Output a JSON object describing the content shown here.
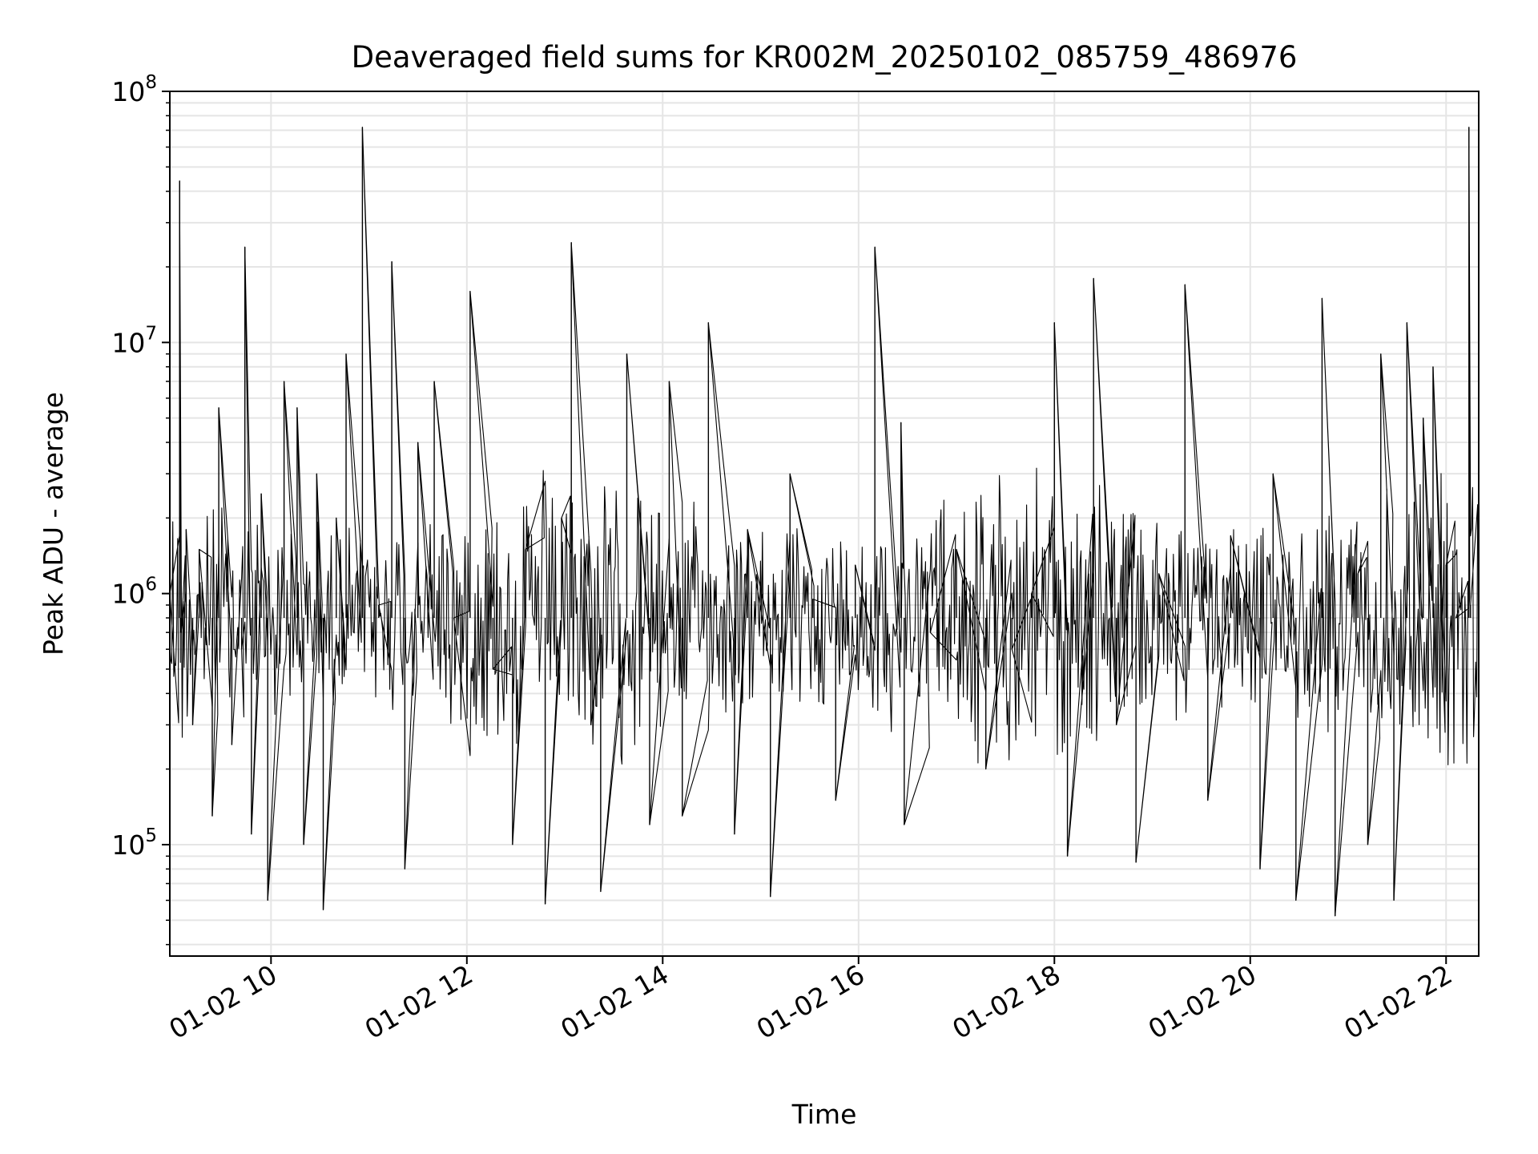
{
  "chart_data": {
    "type": "line",
    "title": "Deaveraged field sums for KR002M_20250102_085759_486976",
    "xlabel": "Time",
    "ylabel": "Peak ADU - average",
    "y_scale": "log",
    "ylim": [
      36000,
      100000000
    ],
    "xlim": [
      "2025-01-02 08:58",
      "2025-01-02 22:20"
    ],
    "grid": true,
    "legend": "none",
    "line_color": "#000000",
    "grid_color": "#e5e5e5",
    "x_ticks": [
      {
        "at": "2025-01-02 10:00",
        "label": "01-02 10"
      },
      {
        "at": "2025-01-02 12:00",
        "label": "01-02 12"
      },
      {
        "at": "2025-01-02 14:00",
        "label": "01-02 14"
      },
      {
        "at": "2025-01-02 16:00",
        "label": "01-02 16"
      },
      {
        "at": "2025-01-02 18:00",
        "label": "01-02 18"
      },
      {
        "at": "2025-01-02 20:00",
        "label": "01-02 20"
      },
      {
        "at": "2025-01-02 22:00",
        "label": "01-02 22"
      }
    ],
    "y_ticks": [
      {
        "value": 100000,
        "base": "10",
        "exp": "5"
      },
      {
        "value": 1000000,
        "base": "10",
        "exp": "6"
      },
      {
        "value": 10000000,
        "base": "10",
        "exp": "7"
      },
      {
        "value": 100000000,
        "base": "10",
        "exp": "8"
      }
    ],
    "series": [
      {
        "name": "",
        "x": [
          "2025-01-02 08:58",
          "2025-01-02 09:04",
          "2025-01-02 09:05",
          "2025-01-02 09:08",
          "2025-01-02 09:12",
          "2025-01-02 09:16",
          "2025-01-02 09:24",
          "2025-01-02 09:28",
          "2025-01-02 09:36",
          "2025-01-02 09:42",
          "2025-01-02 09:44",
          "2025-01-02 09:48",
          "2025-01-02 09:54",
          "2025-01-02 09:58",
          "2025-01-02 10:08",
          "2025-01-02 10:16",
          "2025-01-02 10:20",
          "2025-01-02 10:28",
          "2025-01-02 10:32",
          "2025-01-02 10:40",
          "2025-01-02 10:46",
          "2025-01-02 10:56",
          "2025-01-02 11:06",
          "2025-01-02 11:14",
          "2025-01-02 11:22",
          "2025-01-02 11:30",
          "2025-01-02 11:40",
          "2025-01-02 11:52",
          "2025-01-02 12:02",
          "2025-01-02 12:16",
          "2025-01-02 12:28",
          "2025-01-02 12:36",
          "2025-01-02 12:48",
          "2025-01-02 12:58",
          "2025-01-02 13:04",
          "2025-01-02 13:16",
          "2025-01-02 13:22",
          "2025-01-02 13:38",
          "2025-01-02 13:52",
          "2025-01-02 14:04",
          "2025-01-02 14:12",
          "2025-01-02 14:28",
          "2025-01-02 14:44",
          "2025-01-02 14:52",
          "2025-01-02 15:06",
          "2025-01-02 15:18",
          "2025-01-02 15:32",
          "2025-01-02 15:46",
          "2025-01-02 15:58",
          "2025-01-02 16:10",
          "2025-01-02 16:26",
          "2025-01-02 16:28",
          "2025-01-02 16:44",
          "2025-01-02 17:00",
          "2025-01-02 17:18",
          "2025-01-02 17:34",
          "2025-01-02 17:46",
          "2025-01-02 18:00",
          "2025-01-02 18:08",
          "2025-01-02 18:24",
          "2025-01-02 18:38",
          "2025-01-02 18:50",
          "2025-01-02 19:04",
          "2025-01-02 19:20",
          "2025-01-02 19:34",
          "2025-01-02 19:48",
          "2025-01-02 20:06",
          "2025-01-02 20:14",
          "2025-01-02 20:28",
          "2025-01-02 20:44",
          "2025-01-02 20:52",
          "2025-01-02 21:06",
          "2025-01-02 21:12",
          "2025-01-02 21:20",
          "2025-01-02 21:28",
          "2025-01-02 21:36",
          "2025-01-02 21:46",
          "2025-01-02 21:52",
          "2025-01-02 22:00",
          "2025-01-02 22:06",
          "2025-01-02 22:14",
          "2025-01-02 22:15",
          "2025-01-02 22:20"
        ],
        "y": [
          1000000,
          44000000,
          700000,
          1800000,
          300000,
          1500000,
          130000,
          5500000,
          250000,
          600000,
          24000000,
          110000,
          2500000,
          60000,
          7000000,
          5500000,
          100000,
          3000000,
          55000,
          2000000,
          9000000,
          72000000,
          900000,
          21000000,
          80000,
          4000000,
          7000000,
          800000,
          16000000,
          500000,
          100000,
          1500000,
          58000,
          2000000,
          25000000,
          300000,
          65000,
          9000000,
          120000,
          7000000,
          130000,
          12000000,
          110000,
          1800000,
          62000,
          3000000,
          950000,
          150000,
          1300000,
          24000000,
          4800000,
          120000,
          700000,
          1500000,
          200000,
          600000,
          1000000,
          12000000,
          90000,
          18000000,
          300000,
          85000,
          1200000,
          17000000,
          150000,
          1700000,
          80000,
          3000000,
          60000,
          15000000,
          52000,
          1200000,
          100000,
          9000000,
          60000,
          12000000,
          5000000,
          8000000,
          1300000,
          800000,
          72000000,
          900000,
          950000
        ]
      }
    ]
  }
}
